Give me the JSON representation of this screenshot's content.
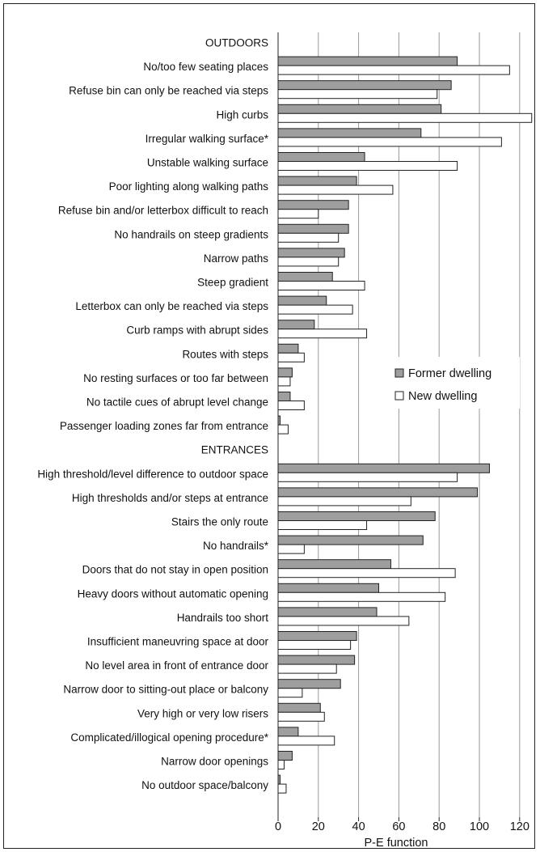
{
  "chart_data": {
    "type": "bar",
    "orientation": "horizontal",
    "xlabel": "P-E function",
    "xlim": [
      0,
      125
    ],
    "xticks": [
      0,
      20,
      40,
      60,
      80,
      100,
      120
    ],
    "grid": "vertical",
    "legend_position": "right",
    "series": [
      {
        "name": "Former dwelling",
        "color": "#9e9e9e"
      },
      {
        "name": "New dwelling",
        "color": "#ffffff"
      }
    ],
    "groups": [
      {
        "label": "OUTDOORS",
        "categories": [
          {
            "label": "No/too few seating places",
            "values": [
              89,
              115
            ]
          },
          {
            "label": "Refuse bin can only be reached via steps",
            "values": [
              86,
              79
            ]
          },
          {
            "label": "High curbs",
            "values": [
              81,
              126
            ]
          },
          {
            "label": "Irregular walking surface*",
            "values": [
              71,
              111
            ]
          },
          {
            "label": "Unstable walking surface",
            "values": [
              43,
              89
            ]
          },
          {
            "label": "Poor lighting along walking paths",
            "values": [
              39,
              57
            ]
          },
          {
            "label": "Refuse bin and/or letterbox difficult to reach",
            "values": [
              35,
              20
            ]
          },
          {
            "label": "No handrails on steep gradients",
            "values": [
              35,
              30
            ]
          },
          {
            "label": "Narrow paths",
            "values": [
              33,
              30
            ]
          },
          {
            "label": "Steep gradient",
            "values": [
              27,
              43
            ]
          },
          {
            "label": "Letterbox can only be reached via steps",
            "values": [
              24,
              37
            ]
          },
          {
            "label": "Curb ramps with abrupt sides",
            "values": [
              18,
              44
            ]
          },
          {
            "label": "Routes with steps",
            "values": [
              10,
              13
            ]
          },
          {
            "label": "No resting surfaces or too far between",
            "values": [
              7,
              6
            ]
          },
          {
            "label": "No tactile cues of abrupt level change",
            "values": [
              6,
              13
            ]
          },
          {
            "label": "Passenger loading zones far from entrance",
            "values": [
              1,
              5
            ]
          }
        ]
      },
      {
        "label": "ENTRANCES",
        "categories": [
          {
            "label": "High threshold/level difference to outdoor space",
            "values": [
              105,
              89
            ]
          },
          {
            "label": "High thresholds and/or steps at entrance",
            "values": [
              99,
              66
            ]
          },
          {
            "label": "Stairs the only route",
            "values": [
              78,
              44
            ]
          },
          {
            "label": "No handrails*",
            "values": [
              72,
              13
            ]
          },
          {
            "label": "Doors that do not stay in open position",
            "values": [
              56,
              88
            ]
          },
          {
            "label": "Heavy doors without automatic opening",
            "values": [
              50,
              83
            ]
          },
          {
            "label": "Handrails too short",
            "values": [
              49,
              65
            ]
          },
          {
            "label": "Insufficient maneuvring space at door",
            "values": [
              39,
              36
            ]
          },
          {
            "label": "No level area in front of entrance door",
            "values": [
              38,
              29
            ]
          },
          {
            "label": "Narrow door to sitting-out place or balcony",
            "values": [
              31,
              12
            ]
          },
          {
            "label": "Very high or very low risers",
            "values": [
              21,
              23
            ]
          },
          {
            "label": "Complicated/illogical opening procedure*",
            "values": [
              10,
              28
            ]
          },
          {
            "label": "Narrow door openings",
            "values": [
              7,
              3
            ]
          },
          {
            "label": "No outdoor space/balcony",
            "values": [
              1,
              4
            ]
          }
        ]
      }
    ]
  }
}
